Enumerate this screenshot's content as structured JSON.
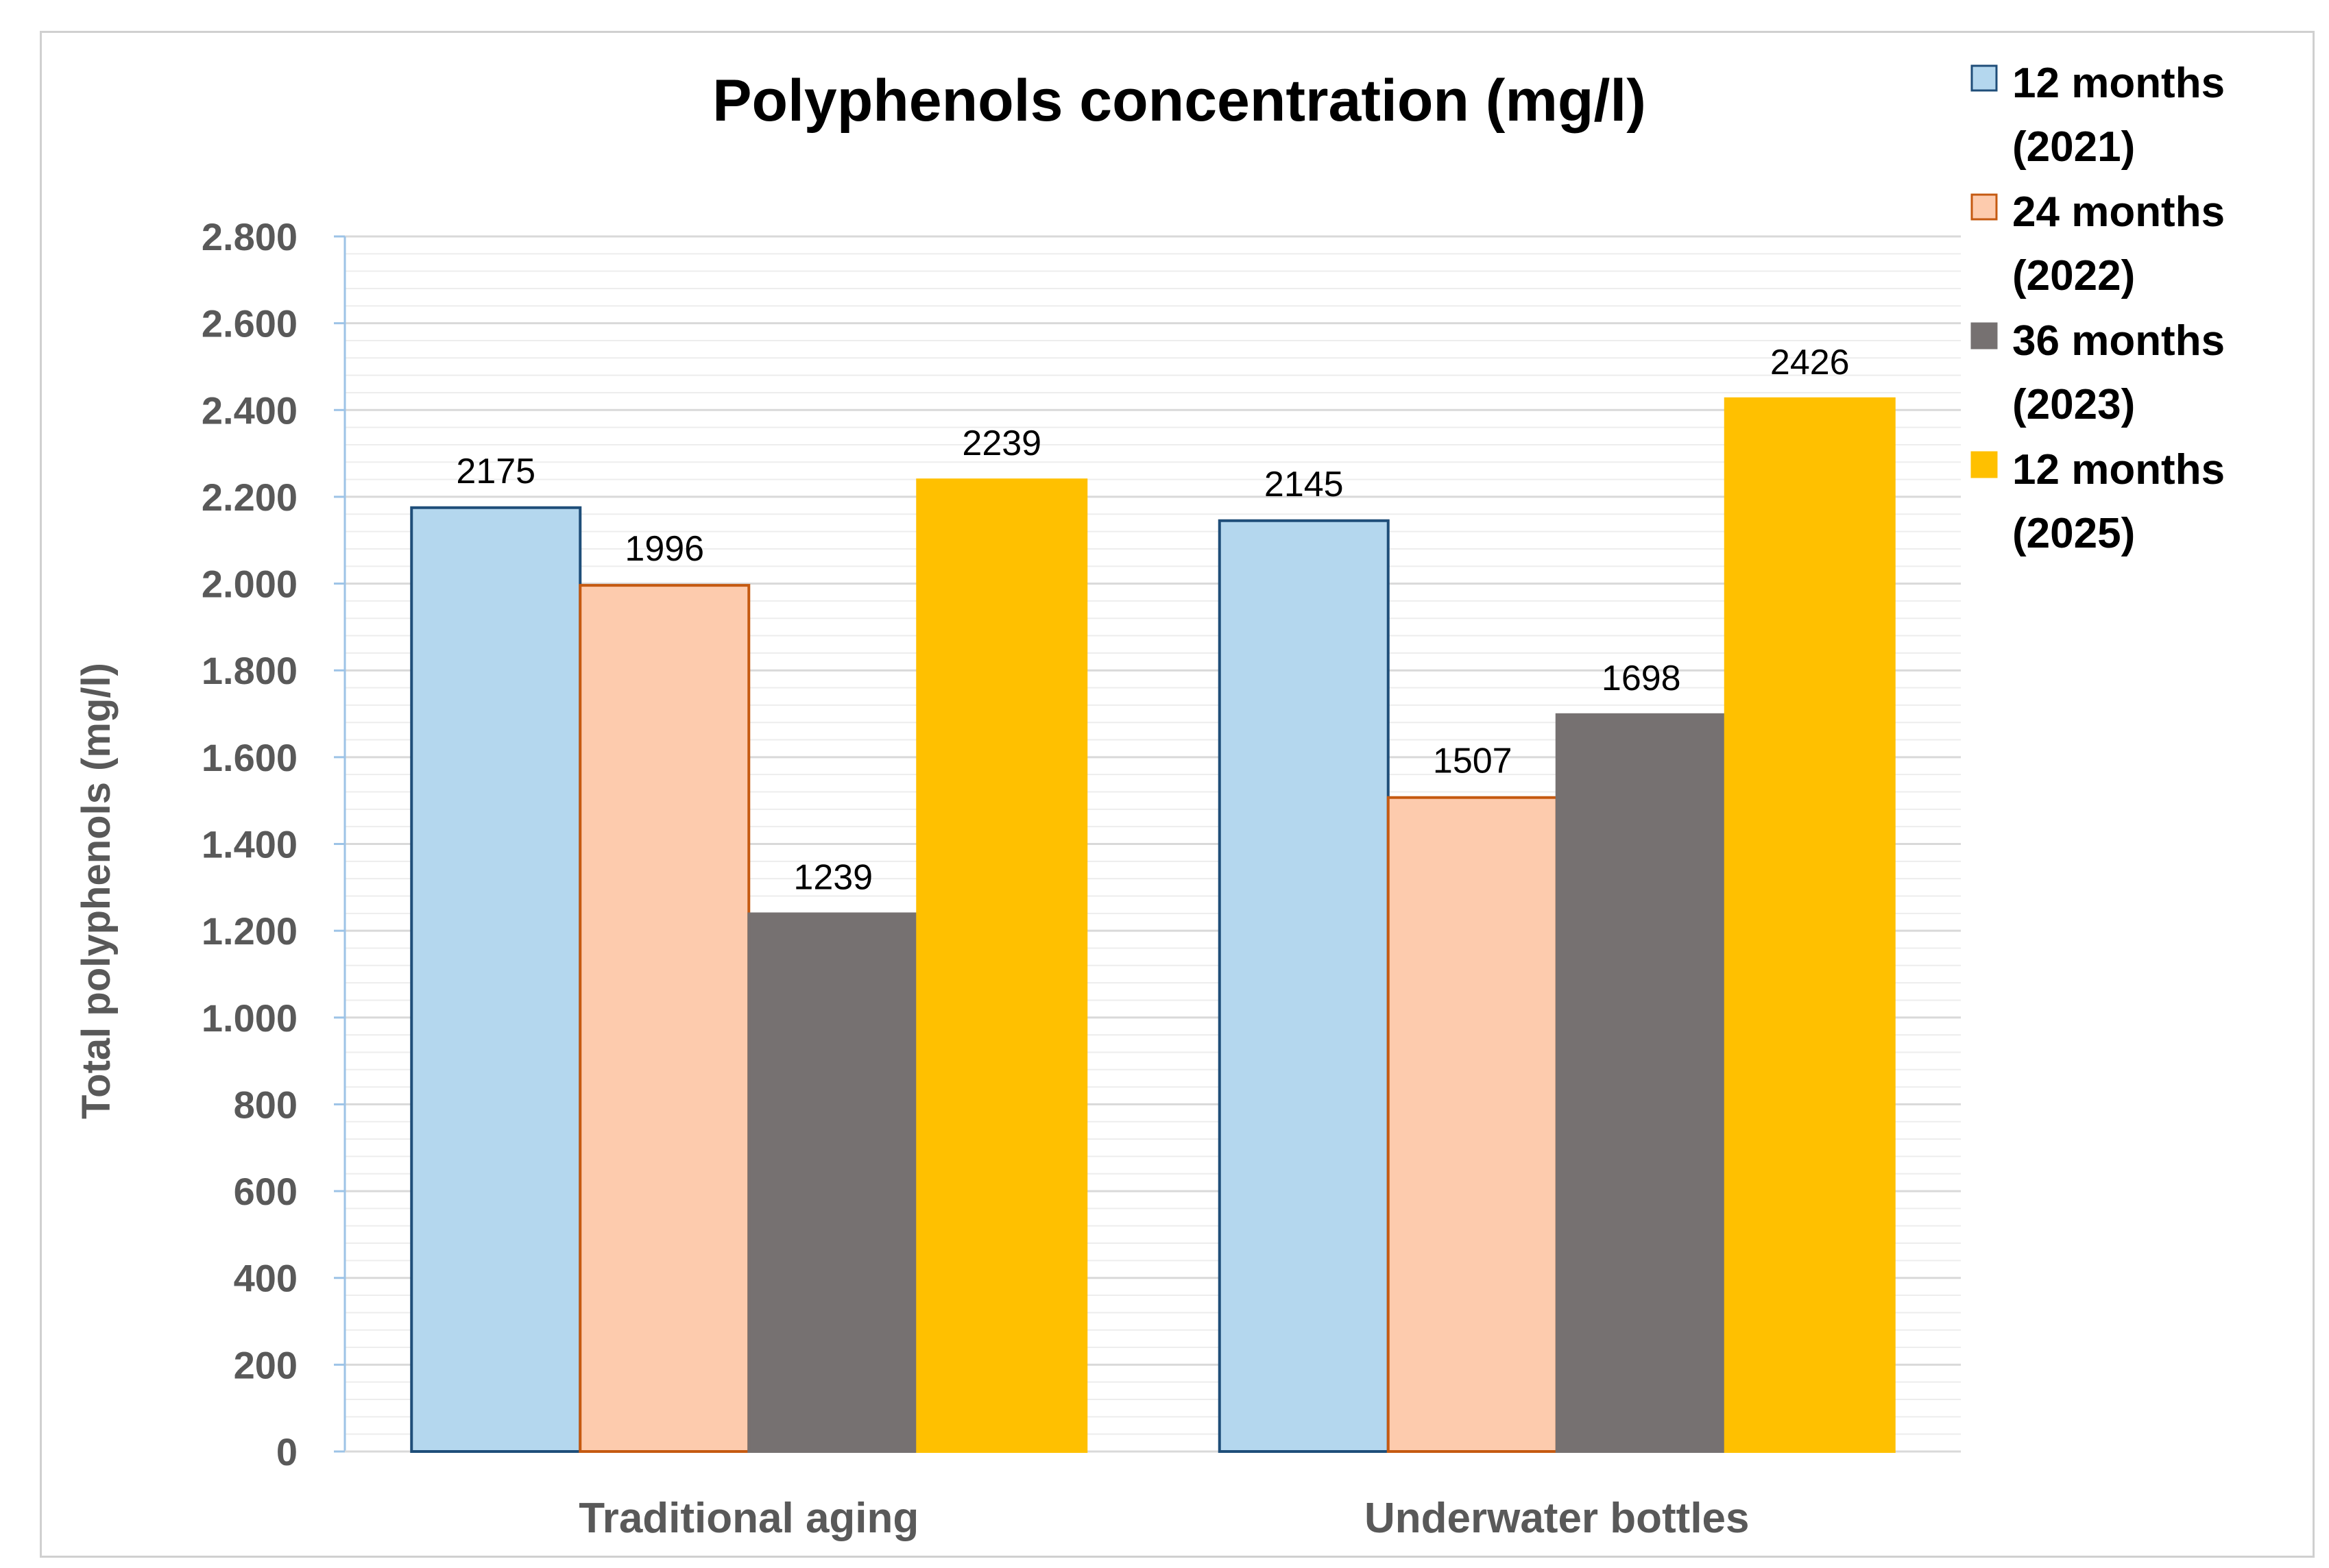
{
  "chart_data": {
    "type": "bar",
    "title": "Polyphenols concentration (mg/l)",
    "xlabel": "",
    "ylabel": "Total polyphenols (mg/l)",
    "categories": [
      "Traditional aging",
      "Underwater bottles"
    ],
    "series": [
      {
        "name": "12 months (2021)",
        "legend_lines": [
          "12 months",
          "(2021)"
        ],
        "color": "#b4d7ee",
        "stroke": "#1f4e79",
        "values": [
          2175,
          2145
        ]
      },
      {
        "name": "24 months (2022)",
        "legend_lines": [
          "24 months",
          "(2022)"
        ],
        "color": "#fdcbad",
        "stroke": "#c55a11",
        "values": [
          1996,
          1507
        ]
      },
      {
        "name": "36 months (2023)",
        "legend_lines": [
          "36 months",
          "(2023)"
        ],
        "color": "#767171",
        "stroke": "#767171",
        "values": [
          1239,
          1698
        ]
      },
      {
        "name": "12 months (2025)",
        "legend_lines": [
          "12 months",
          "(2025)"
        ],
        "color": "#ffc000",
        "stroke": "#ffc000",
        "values": [
          2239,
          2426
        ]
      }
    ],
    "ylim": [
      0,
      2800
    ],
    "ytick_values": [
      0,
      200,
      400,
      600,
      800,
      1000,
      1200,
      1400,
      1600,
      1800,
      2000,
      2200,
      2400,
      2600,
      2800
    ],
    "ytick_labels": [
      "0",
      "200",
      "400",
      "600",
      "800",
      "1.000",
      "1.200",
      "1.400",
      "1.600",
      "1.800",
      "2.000",
      "2.200",
      "2.400",
      "2.600",
      "2.800"
    ],
    "grid": true,
    "legend_position": "top-right"
  }
}
